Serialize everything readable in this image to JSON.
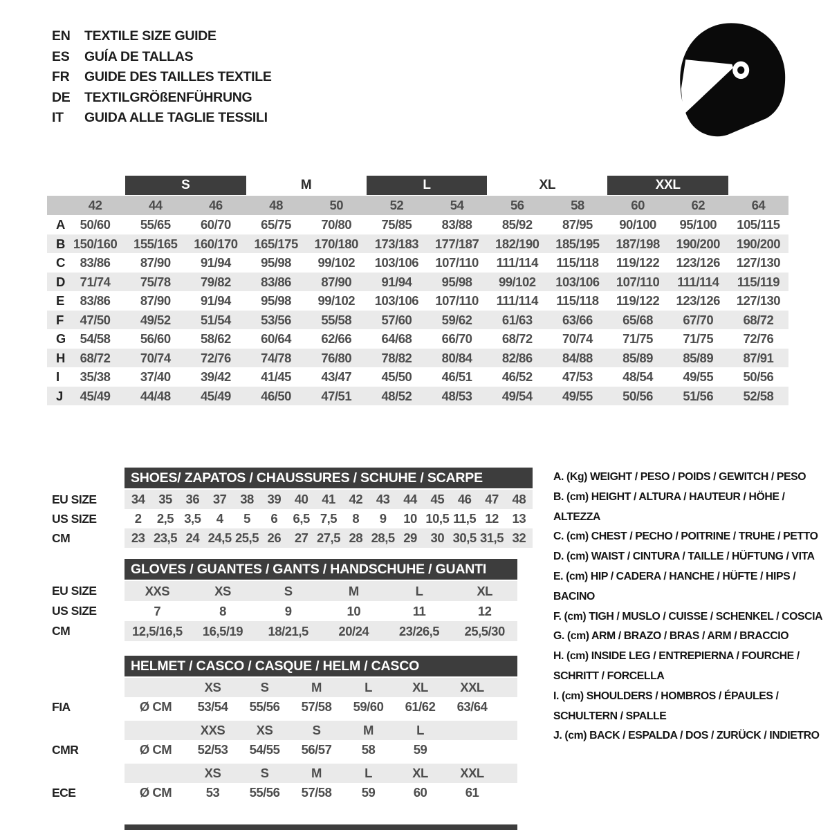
{
  "colors": {
    "dark": "#3d3d3d",
    "band": "#c8c8c8",
    "stripe": "#eaeaea",
    "num": "#4d4d4d",
    "ink": "#1d1d1d"
  },
  "title_block": {
    "languages": [
      {
        "code": "EN",
        "title": "TEXTILE SIZE GUIDE"
      },
      {
        "code": "ES",
        "title": "GUÍA DE TALLAS"
      },
      {
        "code": "FR",
        "title": "GUIDE DES TAILLES TEXTILE"
      },
      {
        "code": "DE",
        "title": "TEXTILGRÖßENFÜHRUNG"
      },
      {
        "code": "IT",
        "title": "GUIDA ALLE TAGLIE TESSILI"
      }
    ]
  },
  "main_table": {
    "group_headers": [
      {
        "label": "S",
        "dark": true
      },
      {
        "label": "M",
        "dark": false
      },
      {
        "label": "L",
        "dark": true
      },
      {
        "label": "XL",
        "dark": false
      },
      {
        "label": "XXL",
        "dark": true
      }
    ],
    "sizes": [
      "42",
      "44",
      "46",
      "48",
      "50",
      "52",
      "54",
      "56",
      "58",
      "60",
      "62",
      "64"
    ],
    "rows": [
      {
        "key": "A",
        "values": [
          "50/60",
          "55/65",
          "60/70",
          "65/75",
          "70/80",
          "75/85",
          "83/88",
          "85/92",
          "87/95",
          "90/100",
          "95/100",
          "105/115"
        ]
      },
      {
        "key": "B",
        "values": [
          "150/160",
          "155/165",
          "160/170",
          "165/175",
          "170/180",
          "173/183",
          "177/187",
          "182/190",
          "185/195",
          "187/198",
          "190/200",
          "190/200"
        ]
      },
      {
        "key": "C",
        "values": [
          "83/86",
          "87/90",
          "91/94",
          "95/98",
          "99/102",
          "103/106",
          "107/110",
          "111/114",
          "115/118",
          "119/122",
          "123/126",
          "127/130"
        ]
      },
      {
        "key": "D",
        "values": [
          "71/74",
          "75/78",
          "79/82",
          "83/86",
          "87/90",
          "91/94",
          "95/98",
          "99/102",
          "103/106",
          "107/110",
          "111/114",
          "115/119"
        ]
      },
      {
        "key": "E",
        "values": [
          "83/86",
          "87/90",
          "91/94",
          "95/98",
          "99/102",
          "103/106",
          "107/110",
          "111/114",
          "115/118",
          "119/122",
          "123/126",
          "127/130"
        ]
      },
      {
        "key": "F",
        "values": [
          "47/50",
          "49/52",
          "51/54",
          "53/56",
          "55/58",
          "57/60",
          "59/62",
          "61/63",
          "63/66",
          "65/68",
          "67/70",
          "68/72"
        ]
      },
      {
        "key": "G",
        "values": [
          "54/58",
          "56/60",
          "58/62",
          "60/64",
          "62/66",
          "64/68",
          "66/70",
          "68/72",
          "70/74",
          "71/75",
          "71/75",
          "72/76"
        ]
      },
      {
        "key": "H",
        "values": [
          "68/72",
          "70/74",
          "72/76",
          "74/78",
          "76/80",
          "78/82",
          "80/84",
          "82/86",
          "84/88",
          "85/89",
          "85/89",
          "87/91"
        ]
      },
      {
        "key": "I",
        "values": [
          "35/38",
          "37/40",
          "39/42",
          "41/45",
          "43/47",
          "45/50",
          "46/51",
          "46/52",
          "47/53",
          "48/54",
          "49/55",
          "50/56"
        ]
      },
      {
        "key": "J",
        "values": [
          "45/49",
          "44/48",
          "45/49",
          "46/50",
          "47/51",
          "48/52",
          "48/53",
          "49/54",
          "49/55",
          "50/56",
          "51/56",
          "52/58"
        ]
      }
    ]
  },
  "shoes": {
    "title": "SHOES/ ZAPATOS / CHAUSSURES / SCHUHE / SCARPE",
    "rows": [
      {
        "label": "EU SIZE",
        "striped": true,
        "values": [
          "34",
          "35",
          "36",
          "37",
          "38",
          "39",
          "40",
          "41",
          "42",
          "43",
          "44",
          "45",
          "46",
          "47",
          "48"
        ]
      },
      {
        "label": "US SIZE",
        "striped": false,
        "values": [
          "2",
          "2,5",
          "3,5",
          "4",
          "5",
          "6",
          "6,5",
          "7,5",
          "8",
          "9",
          "10",
          "10,5",
          "11,5",
          "12",
          "13"
        ]
      },
      {
        "label": "CM",
        "striped": true,
        "values": [
          "23",
          "23,5",
          "24",
          "24,5",
          "25,5",
          "26",
          "27",
          "27,5",
          "28",
          "28,5",
          "29",
          "30",
          "30,5",
          "31,5",
          "32"
        ]
      }
    ]
  },
  "gloves": {
    "title": "GLOVES / GUANTES / GANTS / HANDSCHUHE / GUANTI",
    "rows": [
      {
        "label": "EU SIZE",
        "striped": true,
        "values": [
          "XXS",
          "XS",
          "S",
          "M",
          "L",
          "XL"
        ]
      },
      {
        "label": "US SIZE",
        "striped": false,
        "values": [
          "7",
          "8",
          "9",
          "10",
          "11",
          "12"
        ]
      },
      {
        "label": "CM",
        "striped": true,
        "values": [
          "12,5/16,5",
          "16,5/19",
          "18/21,5",
          "20/24",
          "23/26,5",
          "25,5/30"
        ]
      }
    ]
  },
  "helmet": {
    "title": "HELMET / CASCO / CASQUE / HELM / CASCO",
    "standards": [
      {
        "name": "FIA",
        "unit": "Ø CM",
        "sizes": [
          "XS",
          "S",
          "M",
          "L",
          "XL",
          "XXL"
        ],
        "values": [
          "53/54",
          "55/56",
          "57/58",
          "59/60",
          "61/62",
          "63/64"
        ]
      },
      {
        "name": "CMR",
        "unit": "Ø CM",
        "sizes": [
          "XXS",
          "XS",
          "S",
          "M",
          "L",
          ""
        ],
        "values": [
          "52/53",
          "54/55",
          "56/57",
          "58",
          "59",
          ""
        ]
      },
      {
        "name": "ECE",
        "unit": "Ø CM",
        "sizes": [
          "XS",
          "S",
          "M",
          "L",
          "XL",
          "XXL"
        ],
        "values": [
          "53",
          "55/56",
          "57/58",
          "59",
          "60",
          "61"
        ]
      }
    ]
  },
  "legend": [
    "A. (Kg) WEIGHT / PESO / POIDS / GEWITCH / PESO",
    "B. (cm) HEIGHT / ALTURA / HAUTEUR / HÖHE / ALTEZZA",
    "C. (cm) CHEST / PECHO / POITRINE / TRUHE / PETTO",
    "D. (cm) WAIST / CINTURA / TAILLE / HÜFTUNG / VITA",
    "E. (cm) HIP / CADERA / HANCHE / HÜFTE / HIPS / BACINO",
    "F. (cm) TIGH / MUSLO / CUISSE / SCHENKEL / COSCIA",
    "G. (cm) ARM / BRAZO / BRAS / ARM / BRACCIO",
    "H. (cm) INSIDE LEG / ENTREPIERNA / FOURCHE /\nSCHRITT / FORCELLA",
    "I. (cm) SHOULDERS / HOMBROS / ÉPAULES /\nSCHULTERN / SPALLE",
    "J. (cm) BACK / ESPALDA / DOS / ZURÜCK / INDIETRO"
  ]
}
